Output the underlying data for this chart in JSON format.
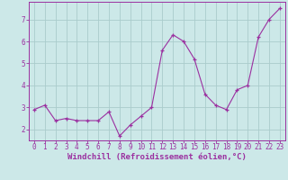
{
  "x": [
    0,
    1,
    2,
    3,
    4,
    5,
    6,
    7,
    8,
    9,
    10,
    11,
    12,
    13,
    14,
    15,
    16,
    17,
    18,
    19,
    20,
    21,
    22,
    23
  ],
  "y": [
    2.9,
    3.1,
    2.4,
    2.5,
    2.4,
    2.4,
    2.4,
    2.8,
    1.7,
    2.2,
    2.6,
    3.0,
    5.6,
    6.3,
    6.0,
    5.2,
    3.6,
    3.1,
    2.9,
    3.8,
    4.0,
    6.2,
    7.0,
    7.5
  ],
  "line_color": "#9b30a0",
  "marker": "+",
  "bg_color": "#cce8e8",
  "grid_color": "#aacccc",
  "xlabel": "Windchill (Refroidissement éolien,°C)",
  "xlim": [
    -0.5,
    23.5
  ],
  "ylim": [
    1.5,
    7.8
  ],
  "yticks": [
    2,
    3,
    4,
    5,
    6,
    7
  ],
  "xticks": [
    0,
    1,
    2,
    3,
    4,
    5,
    6,
    7,
    8,
    9,
    10,
    11,
    12,
    13,
    14,
    15,
    16,
    17,
    18,
    19,
    20,
    21,
    22,
    23
  ],
  "axis_color": "#9b30a0",
  "tick_color": "#9b30a0",
  "label_fontsize": 6.5,
  "tick_fontsize": 5.5
}
